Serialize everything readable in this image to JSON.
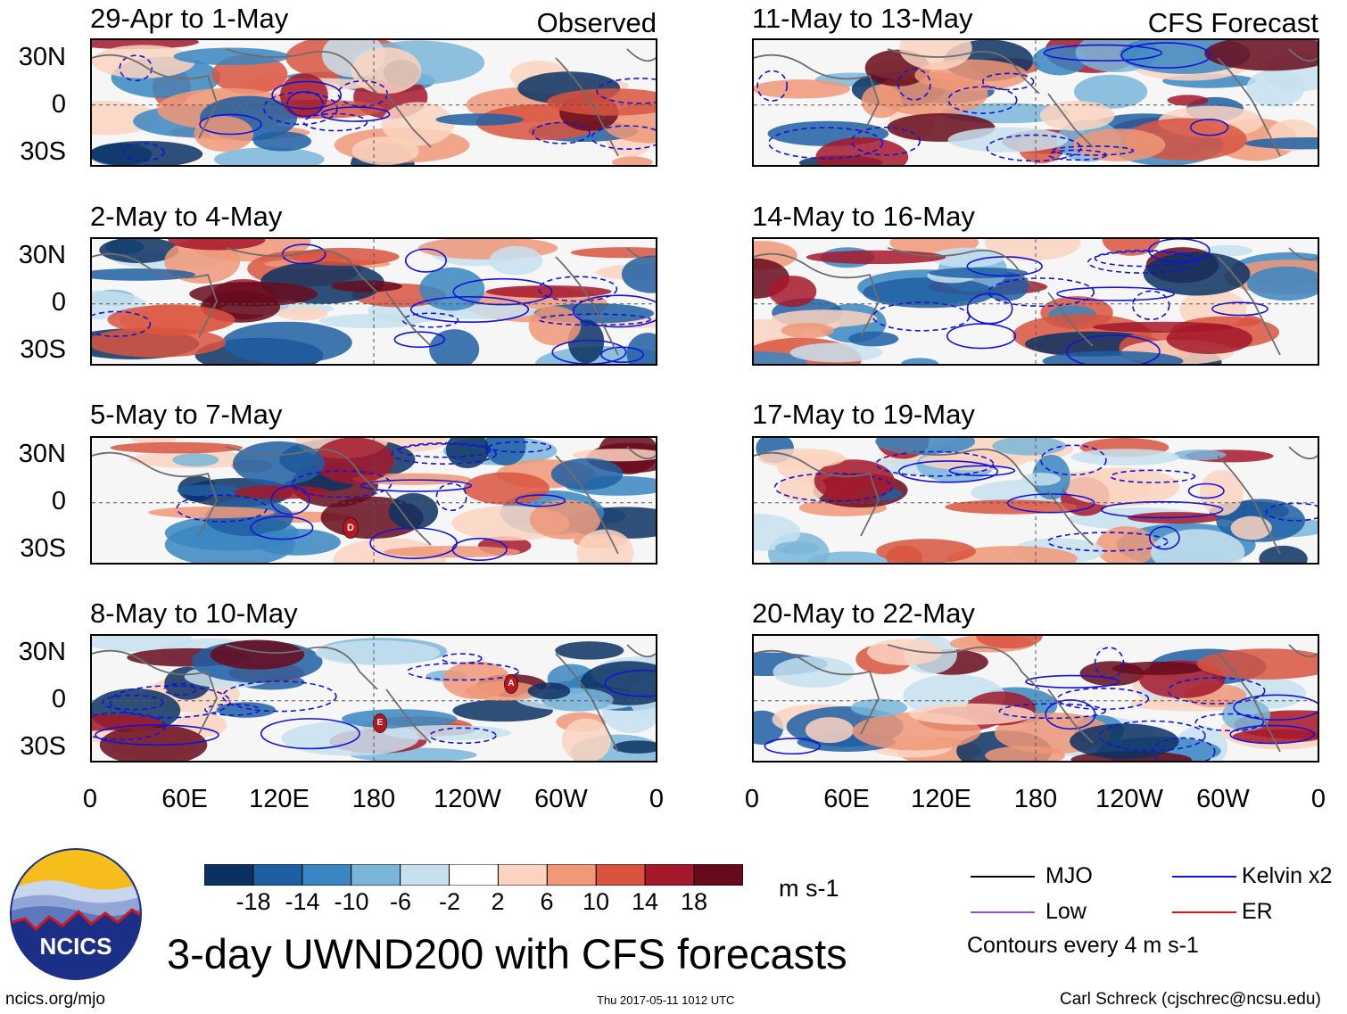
{
  "header": {
    "left_label": "Observed",
    "right_label": "CFS Forecast"
  },
  "panels": {
    "observed": [
      {
        "title": "29-Apr to 1-May"
      },
      {
        "title": "2-May to 4-May"
      },
      {
        "title": "5-May to 7-May"
      },
      {
        "title": "8-May to 10-May"
      }
    ],
    "forecast": [
      {
        "title": "11-May to 13-May"
      },
      {
        "title": "14-May to 16-May"
      },
      {
        "title": "17-May to 19-May"
      },
      {
        "title": "20-May to 22-May"
      }
    ]
  },
  "axes": {
    "lat_labels": [
      "30N",
      "0",
      "30S"
    ],
    "lon_labels": [
      "0",
      "60E",
      "120E",
      "180",
      "120W",
      "60W",
      "0"
    ]
  },
  "storm_markers": {
    "panel_3": [
      "D"
    ],
    "panel_4": [
      "A",
      "E"
    ]
  },
  "colorbar": {
    "labels": [
      "-18",
      "-14",
      "-10",
      "-6",
      "-2",
      "2",
      "6",
      "10",
      "14",
      "18"
    ],
    "colors": [
      "#0b3161",
      "#1e5fa3",
      "#3a86c2",
      "#7ab6d9",
      "#c7e0ef",
      "#ffffff",
      "#fbd3c0",
      "#f09878",
      "#d9533f",
      "#a5182a",
      "#670a1c"
    ],
    "units": "m s-1"
  },
  "legend": {
    "items": [
      {
        "label": "MJO",
        "color": "#000000"
      },
      {
        "label": "Kelvin x2",
        "color": "#1414d8"
      },
      {
        "label": "Low",
        "color": "#a04ad0"
      },
      {
        "label": "ER",
        "color": "#d81414"
      }
    ],
    "note": "Contours every 4 m s-1"
  },
  "logo": {
    "text": "NCICS"
  },
  "main_title": "3-day UWND200 with CFS forecasts",
  "footer": {
    "url": "ncics.org/mjo",
    "timestamp": "Thu 2017-05-11 1012 UTC",
    "author": "Carl Schreck (cjschrec@ncsu.edu)"
  }
}
